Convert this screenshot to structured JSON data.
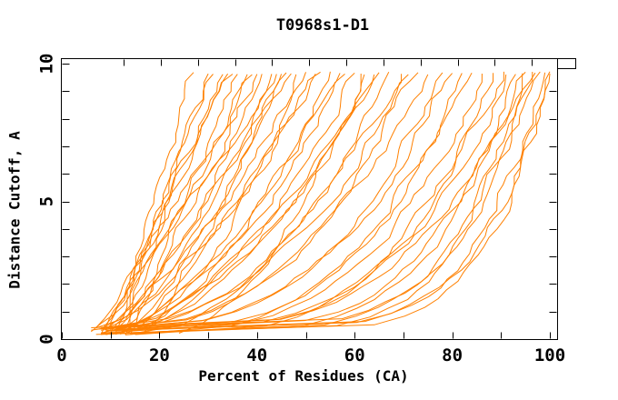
{
  "chart_data": {
    "type": "line",
    "title": "T0968s1-D1",
    "xlabel": "Percent of Residues (CA)",
    "ylabel": "Distance Cutoff, A",
    "xlim": [
      0,
      100
    ],
    "ylim": [
      0,
      10
    ],
    "x_ticks_labeled": [
      0,
      20,
      40,
      60,
      80,
      100
    ],
    "x_ticks_minor": [
      10,
      30,
      50,
      70,
      90
    ],
    "y_ticks_labeled": [
      0,
      5,
      10
    ],
    "y_ticks_minor": [
      1,
      2,
      3,
      4,
      6,
      7,
      8,
      9
    ],
    "top_ticks_percent": [
      12.7,
      20.3,
      27.9,
      35.5,
      43.1,
      50.7,
      58.3,
      65.9,
      73.5,
      81.1,
      88.7,
      96.3
    ],
    "grid": false,
    "legend": "none",
    "line_color": "#ff8000",
    "frame_color": "#000000",
    "series_encoding": "each curve: percent(cutoff) = start + (end-start)*t^shape, t = cutoff/10, cutoff 0..10 A; estimated from overlapping model curves",
    "series": [
      {
        "start": 13,
        "end": 27,
        "shape": 1.25
      },
      {
        "start": 11,
        "end": 30,
        "shape": 1.1
      },
      {
        "start": 9,
        "end": 31,
        "shape": 1.05
      },
      {
        "start": 12,
        "end": 33,
        "shape": 1.08
      },
      {
        "start": 8,
        "end": 34,
        "shape": 0.95
      },
      {
        "start": 10,
        "end": 35,
        "shape": 1.0
      },
      {
        "start": 14,
        "end": 36,
        "shape": 0.9
      },
      {
        "start": 7,
        "end": 38,
        "shape": 0.92
      },
      {
        "start": 11,
        "end": 39,
        "shape": 0.85
      },
      {
        "start": 9,
        "end": 40,
        "shape": 0.88
      },
      {
        "start": 13,
        "end": 41,
        "shape": 0.8
      },
      {
        "start": 6,
        "end": 43,
        "shape": 0.82
      },
      {
        "start": 10,
        "end": 44,
        "shape": 0.78
      },
      {
        "start": 12,
        "end": 46,
        "shape": 0.75
      },
      {
        "start": 8,
        "end": 47,
        "shape": 0.72
      },
      {
        "start": 15,
        "end": 48,
        "shape": 0.7
      },
      {
        "start": 9,
        "end": 50,
        "shape": 0.68
      },
      {
        "start": 11,
        "end": 52,
        "shape": 0.66
      },
      {
        "start": 7,
        "end": 53,
        "shape": 0.64
      },
      {
        "start": 13,
        "end": 55,
        "shape": 0.62
      },
      {
        "start": 10,
        "end": 57,
        "shape": 0.6
      },
      {
        "start": 8,
        "end": 58,
        "shape": 0.58
      },
      {
        "start": 12,
        "end": 60,
        "shape": 0.56
      },
      {
        "start": 9,
        "end": 62,
        "shape": 0.54
      },
      {
        "start": 11,
        "end": 64,
        "shape": 0.52
      },
      {
        "start": 6,
        "end": 65,
        "shape": 0.5
      },
      {
        "start": 14,
        "end": 67,
        "shape": 0.48
      },
      {
        "start": 10,
        "end": 69,
        "shape": 0.46
      },
      {
        "start": 8,
        "end": 71,
        "shape": 0.44
      },
      {
        "start": 12,
        "end": 73,
        "shape": 0.42
      },
      {
        "start": 9,
        "end": 75,
        "shape": 0.4
      },
      {
        "start": 11,
        "end": 78,
        "shape": 0.38
      },
      {
        "start": 7,
        "end": 80,
        "shape": 0.36
      },
      {
        "start": 13,
        "end": 82,
        "shape": 0.34
      },
      {
        "start": 10,
        "end": 84,
        "shape": 0.32
      },
      {
        "start": 8,
        "end": 86,
        "shape": 0.3
      },
      {
        "start": 15,
        "end": 88,
        "shape": 0.28
      },
      {
        "start": 9,
        "end": 90,
        "shape": 0.27
      },
      {
        "start": 11,
        "end": 91,
        "shape": 0.26
      },
      {
        "start": 6,
        "end": 93,
        "shape": 0.24
      },
      {
        "start": 12,
        "end": 94,
        "shape": 0.23
      },
      {
        "start": 8,
        "end": 95,
        "shape": 0.22
      },
      {
        "start": 10,
        "end": 96,
        "shape": 0.2
      },
      {
        "start": 13,
        "end": 97,
        "shape": 0.19
      },
      {
        "start": 7,
        "end": 98,
        "shape": 0.18
      },
      {
        "start": 9,
        "end": 99,
        "shape": 0.17
      },
      {
        "start": 11,
        "end": 100,
        "shape": 0.16
      },
      {
        "start": 8,
        "end": 100,
        "shape": 0.15
      },
      {
        "start": 24,
        "end": 61,
        "shape": 0.55
      },
      {
        "start": 17,
        "end": 45,
        "shape": 0.85
      }
    ]
  }
}
